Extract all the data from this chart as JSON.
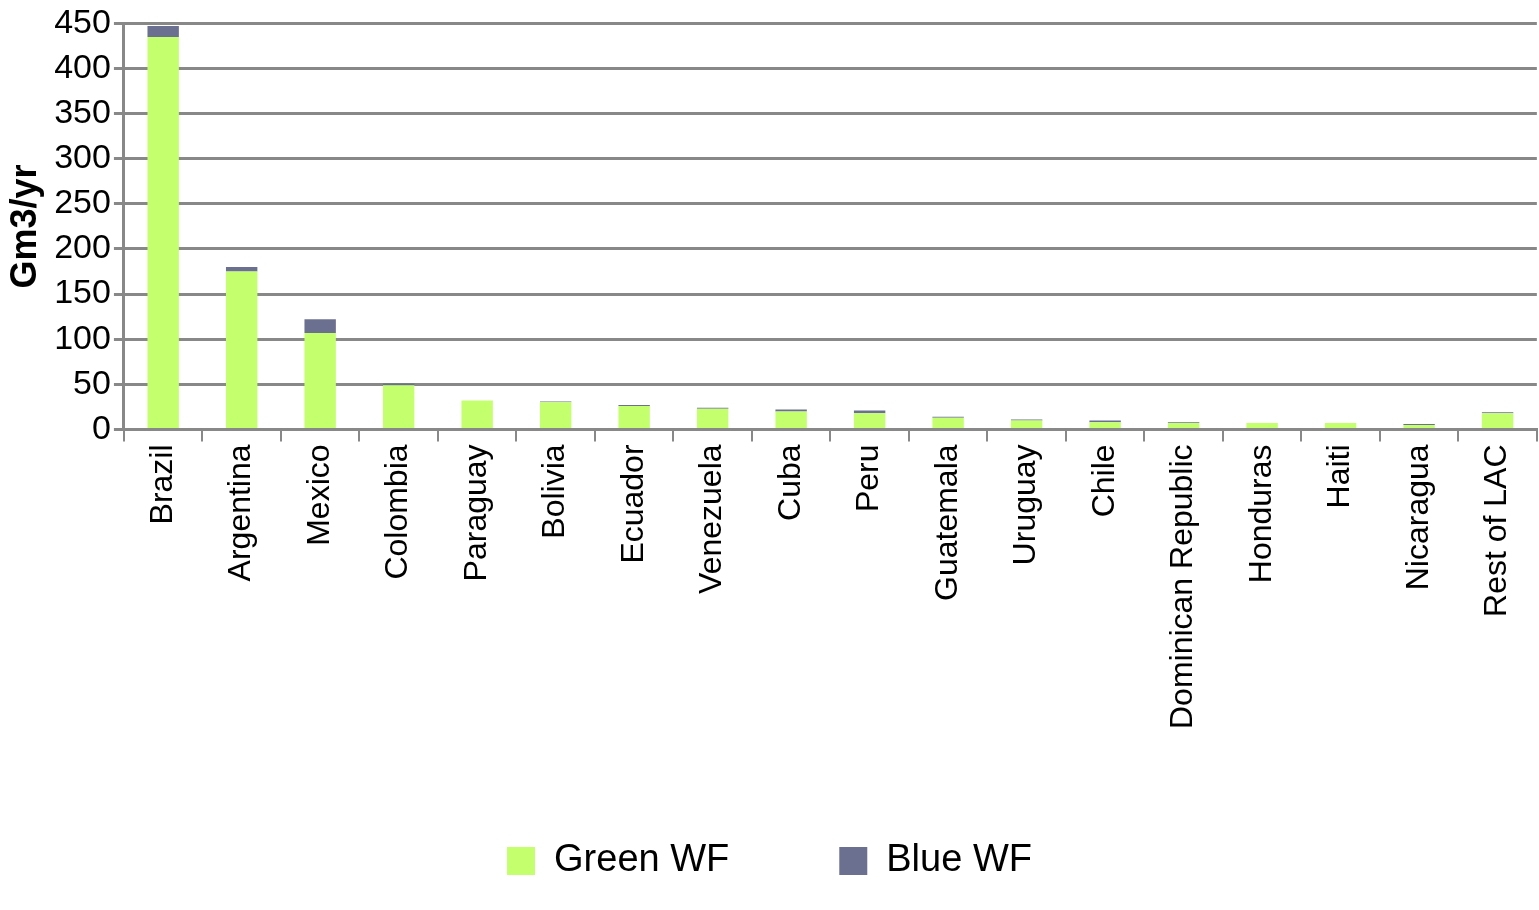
{
  "chart_data": {
    "type": "bar",
    "ylabel": "Gm3/yr",
    "stacked": true,
    "categories": [
      "Brazil",
      "Argentina",
      "Mexico",
      "Colombia",
      "Paraguay",
      "Bolivia",
      "Ecuador",
      "Venezuela",
      "Cuba",
      "Peru",
      "Guatemala",
      "Uruguay",
      "Chile",
      "Dominican Republic",
      "Honduras",
      "Haiti",
      "Nicaragua",
      "Rest of LAC"
    ],
    "series": [
      {
        "name": "Green WF",
        "color": "#c4ff6e",
        "values": [
          435,
          175,
          107,
          49,
          32,
          30,
          26,
          23,
          20,
          18,
          13,
          10,
          8,
          7,
          7,
          7,
          5,
          18
        ]
      },
      {
        "name": "Blue WF",
        "color": "#6b7090",
        "values": [
          12,
          5,
          15,
          2,
          0,
          1,
          1,
          1,
          2,
          3,
          1,
          1,
          2,
          1,
          0,
          0,
          1,
          1
        ]
      }
    ],
    "ylim": [
      0,
      450
    ],
    "yticks": [
      0,
      50,
      100,
      150,
      200,
      250,
      300,
      350,
      400,
      450
    ],
    "grid": "y",
    "legend": "bottom"
  }
}
